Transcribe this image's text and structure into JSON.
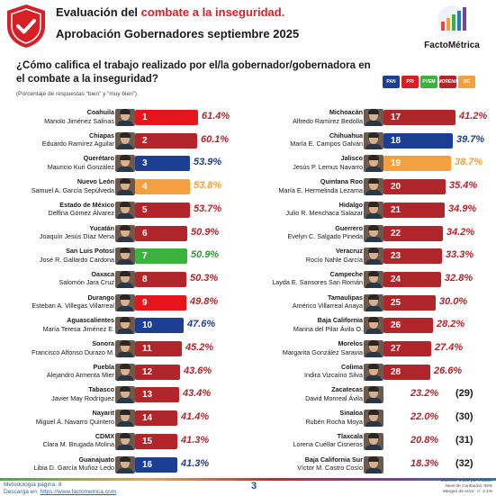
{
  "header": {
    "title_prefix": "Evaluación del ",
    "title_highlight": "combate a la inseguridad.",
    "subtitle": "Aprobación Gobernadores septiembre 2025",
    "brand": "FactoMétrica",
    "shield_icon": "shield-check-icon"
  },
  "question": "¿Cómo califica el trabajo realizado por el/la gobernador/gobernadora en el combate a la inseguridad?",
  "note": "(Porcentaje de respuestas “bien” y “muy bien”).",
  "colors": {
    "red": "#e8141c",
    "darkred": "#b1262b",
    "blue": "#1c3f94",
    "green": "#3bb23b",
    "orange": "#f4a041",
    "navy_text": "#1f3e8e",
    "green_text": "#2f9a2f",
    "orange_text": "#f0a03c",
    "red_text": "#b1262b"
  },
  "parties": [
    "PAN",
    "PRI",
    "PVEM",
    "MORENA",
    "MC"
  ],
  "left": [
    {
      "rank": "1",
      "state": "Coahuila",
      "name": "Manolo Jiménez Salinas",
      "pct": "61.4%",
      "value": 61.4,
      "color": "red"
    },
    {
      "rank": "2",
      "state": "Chiapas",
      "name": "Eduardo Ramírez Aguilar",
      "pct": "60.1%",
      "value": 60.1,
      "color": "darkred"
    },
    {
      "rank": "3",
      "state": "Querétaro",
      "name": "Mauricio Kuri González",
      "pct": "53.9%",
      "value": 53.9,
      "color": "blue"
    },
    {
      "rank": "4",
      "state": "Nuevo León",
      "name": "Samuel A. García Sepúlveda",
      "pct": "53.8%",
      "value": 53.8,
      "color": "orange"
    },
    {
      "rank": "5",
      "state": "Estado de México",
      "name": "Delfina Gómez Álvarez",
      "pct": "53.7%",
      "value": 53.7,
      "color": "darkred"
    },
    {
      "rank": "6",
      "state": "Yucatán",
      "name": "Joaquín Jesús Díaz Mena",
      "pct": "50.9%",
      "value": 50.9,
      "color": "darkred"
    },
    {
      "rank": "7",
      "state": "San Luis Potosí",
      "name": "José R. Gallardo Cardona",
      "pct": "50.9%",
      "value": 50.9,
      "color": "green"
    },
    {
      "rank": "8",
      "state": "Oaxaca",
      "name": "Salomón Jara Cruz",
      "pct": "50.3%",
      "value": 50.3,
      "color": "darkred"
    },
    {
      "rank": "9",
      "state": "Durango",
      "name": "Esteban A. Villegas Villarreal",
      "pct": "49.8%",
      "value": 49.8,
      "color": "red"
    },
    {
      "rank": "10",
      "state": "Aguascalientes",
      "name": "María Teresa Jiménez E.",
      "pct": "47.6%",
      "value": 47.6,
      "color": "blue"
    },
    {
      "rank": "11",
      "state": "Sonora",
      "name": "Francisco Alfonso Durazo M.",
      "pct": "45.2%",
      "value": 45.2,
      "color": "darkred"
    },
    {
      "rank": "12",
      "state": "Puebla",
      "name": "Alejandro Armenta Mier",
      "pct": "43.6%",
      "value": 43.6,
      "color": "darkred"
    },
    {
      "rank": "13",
      "state": "Tabasco",
      "name": "Javier May Rodríguez",
      "pct": "43.4%",
      "value": 43.4,
      "color": "darkred"
    },
    {
      "rank": "14",
      "state": "Nayarit",
      "name": "Miguel Á. Navarro Quintero",
      "pct": "41.4%",
      "value": 41.4,
      "color": "darkred"
    },
    {
      "rank": "15",
      "state": "CDMX",
      "name": "Clara M. Brugada Molina",
      "pct": "41.3%",
      "value": 41.3,
      "color": "darkred"
    },
    {
      "rank": "16",
      "state": "Guanajuato",
      "name": "Libia D. García Muñoz Ledo",
      "pct": "41.3%",
      "value": 41.3,
      "color": "blue"
    }
  ],
  "right": [
    {
      "rank": "17",
      "state": "Michoacán",
      "name": "Alfredo Ramírez Bedolla",
      "pct": "41.2%",
      "value": 41.2,
      "color": "darkred"
    },
    {
      "rank": "18",
      "state": "Chihuahua",
      "name": "María E. Campos Galván",
      "pct": "39.7%",
      "value": 39.7,
      "color": "blue"
    },
    {
      "rank": "19",
      "state": "Jalisco",
      "name": "Jesús P. Lemus Navarro",
      "pct": "38.7%",
      "value": 38.7,
      "color": "orange"
    },
    {
      "rank": "20",
      "state": "Quintana Roo",
      "name": "María E. Hermelinda Lezama",
      "pct": "35.4%",
      "value": 35.4,
      "color": "darkred"
    },
    {
      "rank": "21",
      "state": "Hidalgo",
      "name": "Julio R. Menchaca Salazar",
      "pct": "34.9%",
      "value": 34.9,
      "color": "darkred"
    },
    {
      "rank": "22",
      "state": "Guerrero",
      "name": "Evelyn C. Salgado Pineda",
      "pct": "34.2%",
      "value": 34.2,
      "color": "darkred"
    },
    {
      "rank": "23",
      "state": "Veracruz",
      "name": "Rocío Nahle García",
      "pct": "33.3%",
      "value": 33.3,
      "color": "darkred"
    },
    {
      "rank": "24",
      "state": "Campeche",
      "name": "Layda E. Sansores San Román",
      "pct": "32.8%",
      "value": 32.8,
      "color": "darkred"
    },
    {
      "rank": "25",
      "state": "Tamaulipas",
      "name": "Américo Villarreal Anaya",
      "pct": "30.0%",
      "value": 30.0,
      "color": "darkred"
    },
    {
      "rank": "26",
      "state": "Baja California",
      "name": "Marina del Pilar Ávila O.",
      "pct": "28.2%",
      "value": 28.2,
      "color": "darkred"
    },
    {
      "rank": "27",
      "state": "Morelos",
      "name": "Margarita González Saravia",
      "pct": "27.4%",
      "value": 27.4,
      "color": "darkred"
    },
    {
      "rank": "28",
      "state": "Colima",
      "name": "Indira Vizcaíno Silva",
      "pct": "26.6%",
      "value": 26.6,
      "color": "darkred"
    },
    {
      "rank": "(29)",
      "state": "Zacatecas",
      "name": "David Monreal Ávila",
      "pct": "23.2%",
      "value": 23.2,
      "color": "darkred",
      "outside": true
    },
    {
      "rank": "(30)",
      "state": "Sinaloa",
      "name": "Rubén Rocha Moya",
      "pct": "22.0%",
      "value": 22.0,
      "color": "darkred",
      "outside": true
    },
    {
      "rank": "(31)",
      "state": "Tlaxcala",
      "name": "Lorena Cuéllar Cisneros",
      "pct": "20.8%",
      "value": 20.8,
      "color": "darkred",
      "outside": true
    },
    {
      "rank": "(32)",
      "state": "Baja California Sur",
      "name": "Víctor M. Castro Cosío",
      "pct": "18.3%",
      "value": 18.3,
      "color": "darkred",
      "outside": true
    }
  ],
  "footer": {
    "methodology": "Metodología página: 8",
    "download_prefix": "Descarga en: ",
    "download_link": "https://www.factometrica.com",
    "page": "3",
    "sample": "Muestra: 1,000 por estado.",
    "confidence": "Nivel de Confianza: 95%",
    "error": "Margen de error: +/- 3.1%"
  }
}
